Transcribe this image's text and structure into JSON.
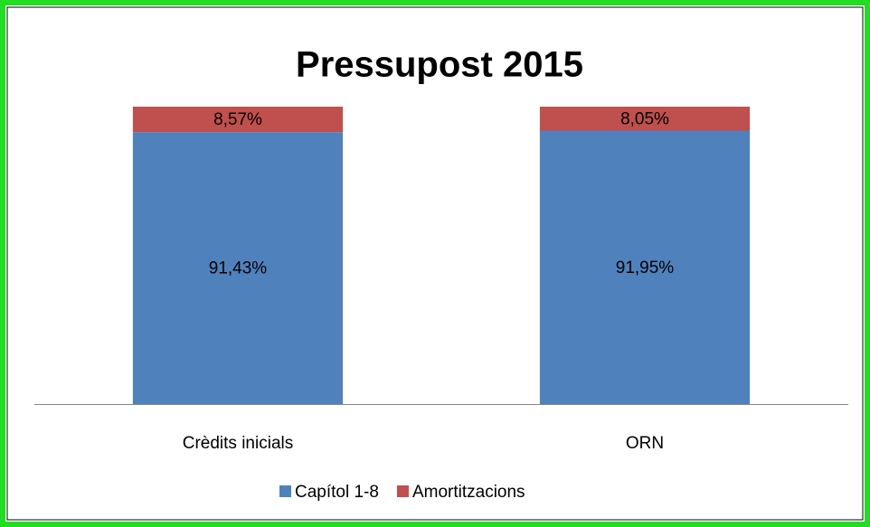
{
  "chart_data": {
    "type": "stacked_bar",
    "title": "Pressupost 2015",
    "categories": [
      "Crèdits inicials",
      "ORN"
    ],
    "series": [
      {
        "name": "Capítol 1-8",
        "color": "#4f81bd",
        "values": [
          91.43,
          91.95
        ],
        "value_labels": [
          "91,43%",
          "91,95%"
        ]
      },
      {
        "name": "Amortitzacions",
        "color": "#c0504d",
        "values": [
          8.57,
          8.05
        ],
        "value_labels": [
          "8,57%",
          "8,05%"
        ]
      }
    ],
    "ylim": [
      0,
      100
    ],
    "legend": "bottom"
  }
}
